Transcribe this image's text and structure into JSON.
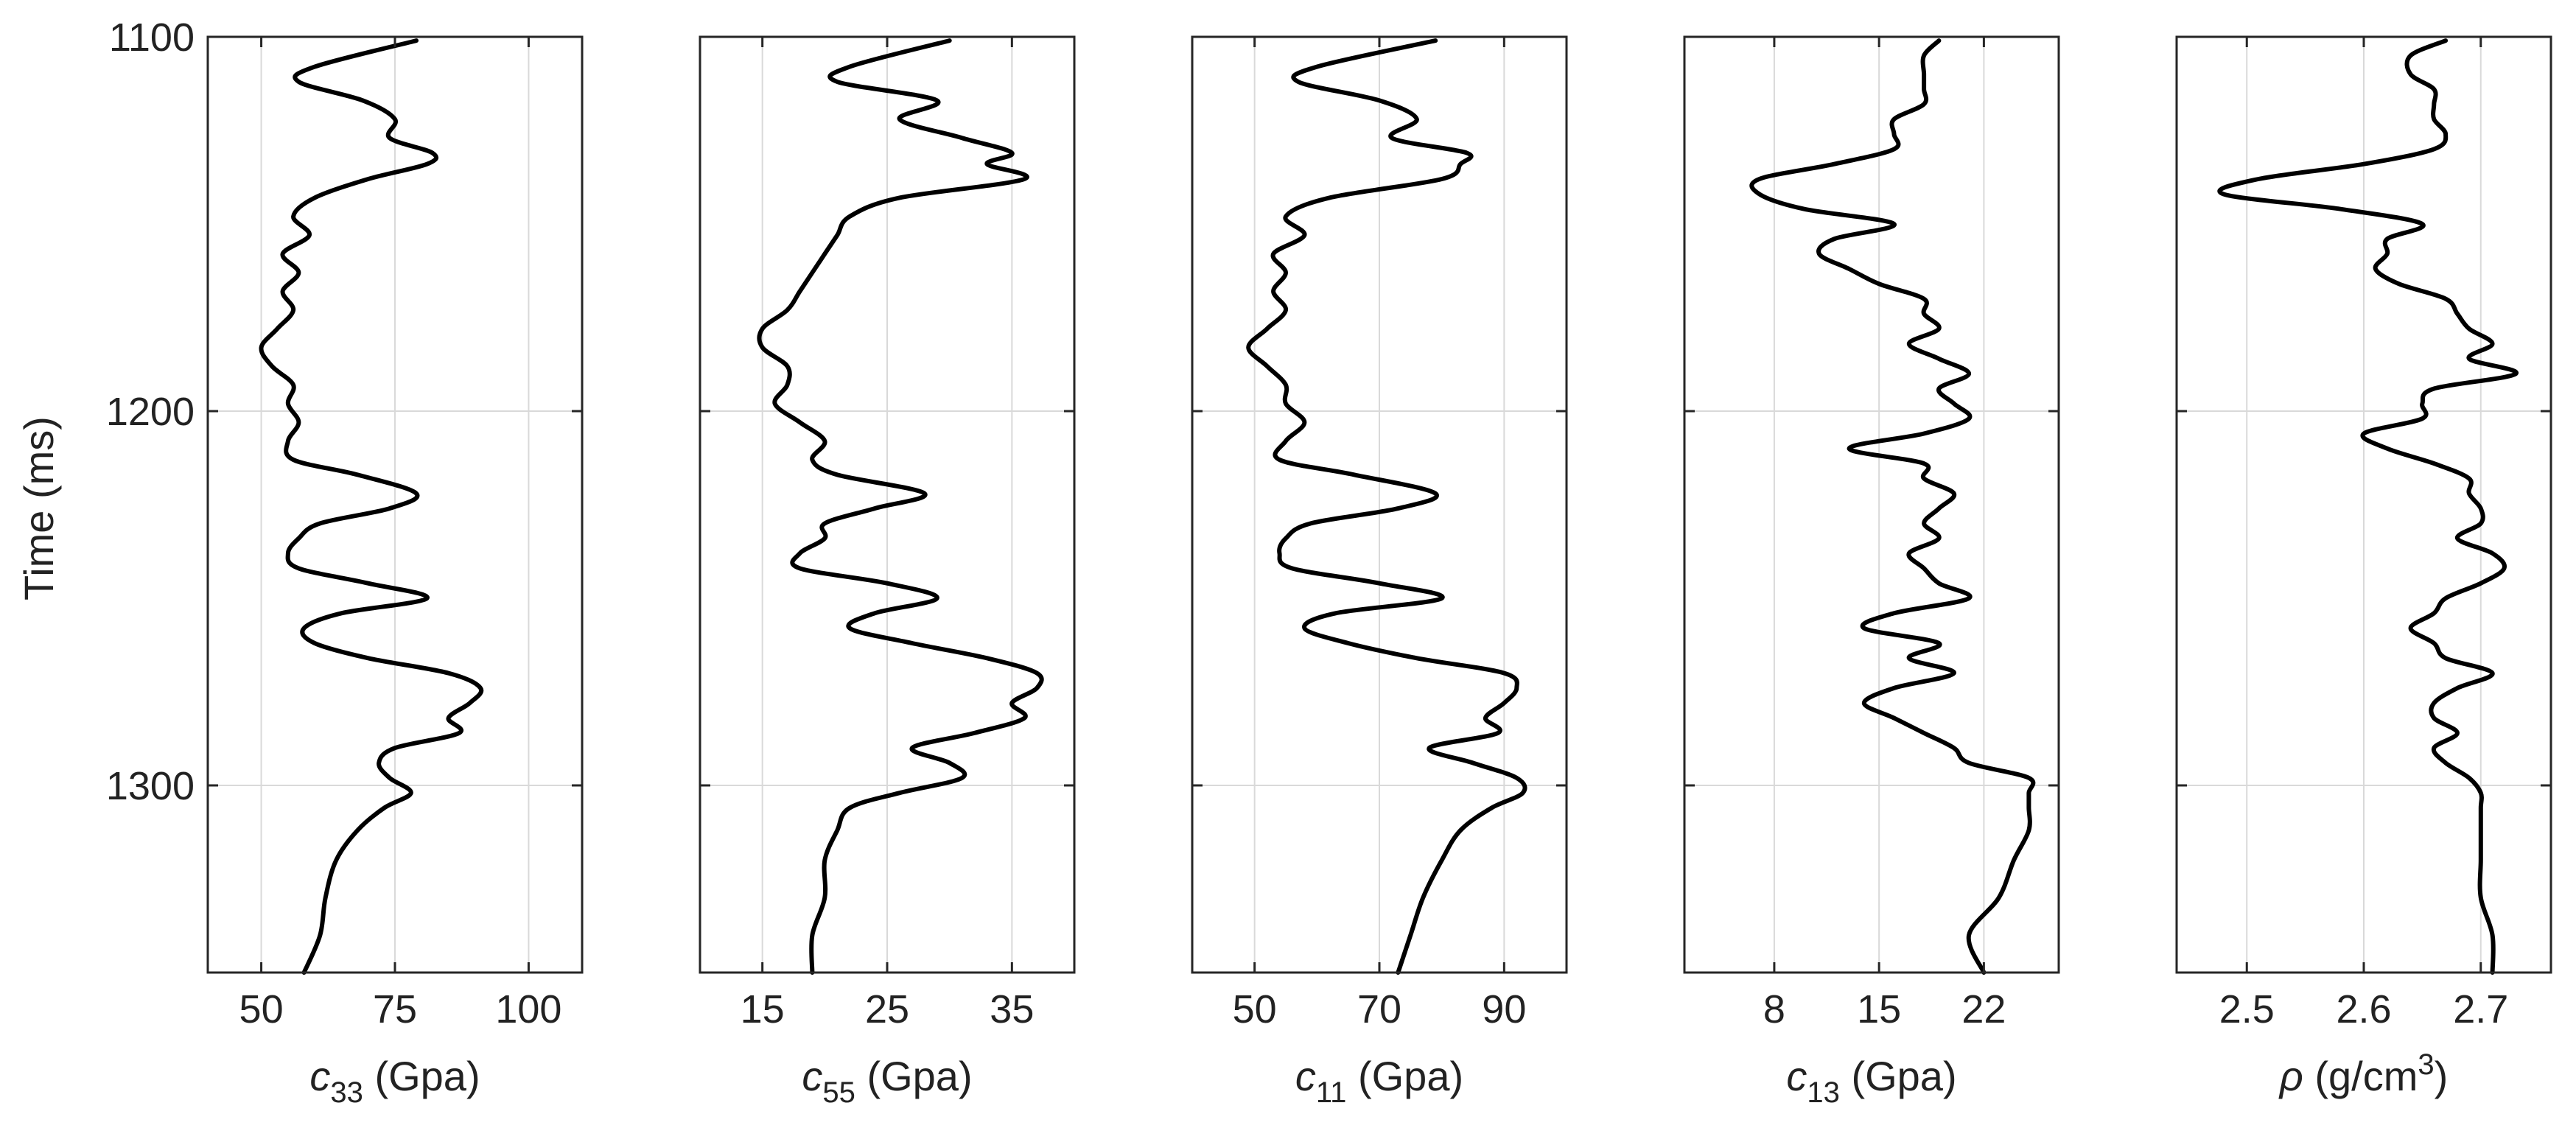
{
  "chart_data": {
    "type": "line",
    "shared_y": {
      "label": "Time (ms)",
      "ticks": [
        1100,
        1200,
        1300
      ],
      "range": [
        1100,
        1350
      ],
      "reversed": true
    },
    "grid": true,
    "panels": [
      {
        "xlabel": {
          "symbol": "c",
          "sub": "33",
          "unit": " (Gpa)",
          "sup": ""
        },
        "xlim": [
          40,
          110
        ],
        "xticks": [
          50,
          75,
          100
        ],
        "xtick_labels": [
          "50",
          "75",
          "100"
        ],
        "series": [
          {
            "y": [
              1101,
              1108,
              1112,
              1117,
              1122,
              1127,
              1131,
              1134,
              1138,
              1143,
              1148,
              1153,
              1158,
              1163,
              1168,
              1173,
              1178,
              1183,
              1188,
              1193,
              1198,
              1203,
              1208,
              1213,
              1217,
              1222,
              1226,
              1230,
              1234,
              1238,
              1242,
              1246,
              1250,
              1254,
              1258,
              1262,
              1266,
              1270,
              1274,
              1278,
              1282,
              1286,
              1290,
              1294,
              1298,
              1302,
              1306,
              1312,
              1320,
              1330,
              1340,
              1350
            ],
            "x": [
              79,
              60,
              57,
              69,
              75,
              74,
              82,
              81,
              70,
              60,
              56,
              59,
              54,
              57,
              54,
              56,
              53,
              50,
              52,
              56,
              55,
              57,
              55,
              56,
              68,
              79,
              74,
              61,
              57,
              55,
              57,
              70,
              81,
              65,
              58,
              60,
              70,
              85,
              91,
              89,
              85,
              87,
              75,
              72,
              74,
              78,
              73,
              68,
              64,
              62,
              61,
              58
            ]
          }
        ]
      },
      {
        "xlabel": {
          "symbol": "c",
          "sub": "55",
          "unit": " (Gpa)",
          "sup": ""
        },
        "xlim": [
          10,
          40
        ],
        "xticks": [
          15,
          25,
          35
        ],
        "xtick_labels": [
          "15",
          "25",
          "35"
        ],
        "series": [
          {
            "y": [
              1101,
              1108,
              1112,
              1117,
              1122,
              1127,
              1131,
              1134,
              1138,
              1143,
              1148,
              1153,
              1158,
              1163,
              1168,
              1173,
              1178,
              1183,
              1188,
              1193,
              1198,
              1203,
              1208,
              1213,
              1217,
              1222,
              1226,
              1230,
              1234,
              1238,
              1242,
              1246,
              1250,
              1254,
              1258,
              1262,
              1266,
              1270,
              1274,
              1278,
              1282,
              1286,
              1290,
              1294,
              1298,
              1302,
              1306,
              1312,
              1320,
              1330,
              1340,
              1350
            ],
            "x": [
              30,
              22,
              21,
              29,
              26,
              31,
              35,
              33,
              36,
              26,
              22,
              21,
              20,
              19,
              18,
              17,
              15,
              15,
              17,
              17,
              16,
              18,
              20,
              19,
              21,
              28,
              24,
              20,
              20,
              18,
              18,
              25,
              29,
              24,
              22,
              27,
              33,
              37,
              37,
              35,
              36,
              32,
              27,
              30,
              31,
              26,
              22,
              21,
              20,
              20,
              19,
              19
            ]
          }
        ]
      },
      {
        "xlabel": {
          "symbol": "c",
          "sub": "11",
          "unit": " (Gpa)",
          "sup": ""
        },
        "xlim": [
          40,
          100
        ],
        "xticks": [
          50,
          70,
          90
        ],
        "xtick_labels": [
          "50",
          "70",
          "90"
        ],
        "series": [
          {
            "y": [
              1101,
              1108,
              1112,
              1117,
              1122,
              1127,
              1131,
              1134,
              1138,
              1143,
              1148,
              1153,
              1158,
              1163,
              1168,
              1173,
              1178,
              1183,
              1188,
              1193,
              1198,
              1203,
              1208,
              1213,
              1217,
              1222,
              1226,
              1230,
              1234,
              1238,
              1242,
              1246,
              1250,
              1254,
              1258,
              1262,
              1266,
              1270,
              1274,
              1278,
              1282,
              1286,
              1290,
              1294,
              1298,
              1302,
              1306,
              1312,
              1320,
              1330,
              1340,
              1350
            ],
            "x": [
              79,
              60,
              57,
              70,
              76,
              72,
              84,
              83,
              80,
              62,
              55,
              58,
              53,
              55,
              53,
              55,
              52,
              49,
              52,
              55,
              55,
              58,
              55,
              54,
              66,
              79,
              73,
              59,
              55,
              54,
              56,
              70,
              80,
              63,
              58,
              65,
              76,
              90,
              92,
              90,
              87,
              89,
              78,
              85,
              92,
              93,
              88,
              83,
              80,
              77,
              75,
              73
            ]
          }
        ]
      },
      {
        "xlabel": {
          "symbol": "c",
          "sub": "13",
          "unit": " (Gpa)",
          "sup": ""
        },
        "xlim": [
          2,
          27
        ],
        "xticks": [
          8,
          15,
          22
        ],
        "xtick_labels": [
          "8",
          "15",
          "22"
        ],
        "series": [
          {
            "y": [
              1101,
              1105,
              1110,
              1114,
              1118,
              1122,
              1126,
              1130,
              1134,
              1138,
              1142,
              1146,
              1150,
              1154,
              1158,
              1162,
              1166,
              1170,
              1174,
              1178,
              1182,
              1186,
              1190,
              1194,
              1198,
              1202,
              1206,
              1210,
              1214,
              1218,
              1222,
              1226,
              1230,
              1234,
              1238,
              1242,
              1246,
              1250,
              1254,
              1258,
              1262,
              1266,
              1270,
              1274,
              1278,
              1282,
              1286,
              1290,
              1294,
              1298,
              1302,
              1306,
              1312,
              1320,
              1330,
              1340,
              1350
            ],
            "x": [
              19,
              18,
              18,
              18,
              18,
              16,
              16,
              16,
              12,
              7,
              7,
              10,
              16,
              12,
              11,
              13,
              15,
              18,
              18,
              19,
              17,
              19,
              21,
              19,
              20,
              21,
              18,
              13,
              18,
              18,
              20,
              19,
              18,
              19,
              17,
              18,
              19,
              21,
              16,
              14,
              19,
              17,
              20,
              16,
              14,
              16,
              18,
              20,
              21,
              25,
              25,
              25,
              25,
              24,
              23,
              21,
              22
            ]
          }
        ]
      },
      {
        "xlabel": {
          "symbol": "ρ",
          "sub": "",
          "unit": " (g/cm",
          "sup": "3",
          "close": ")"
        },
        "xlim": [
          2.44,
          2.76
        ],
        "xticks": [
          2.5,
          2.6,
          2.7
        ],
        "xtick_labels": [
          "2.5",
          "2.6",
          "2.7"
        ],
        "series": [
          {
            "y": [
              1101,
              1105,
              1110,
              1114,
              1118,
              1122,
              1126,
              1130,
              1134,
              1138,
              1142,
              1146,
              1150,
              1154,
              1158,
              1162,
              1166,
              1170,
              1174,
              1178,
              1182,
              1186,
              1190,
              1194,
              1198,
              1202,
              1206,
              1210,
              1214,
              1218,
              1222,
              1226,
              1230,
              1234,
              1238,
              1242,
              1246,
              1250,
              1254,
              1258,
              1262,
              1266,
              1270,
              1274,
              1278,
              1282,
              1286,
              1290,
              1294,
              1298,
              1302,
              1306,
              1312,
              1320,
              1330,
              1340,
              1350
            ],
            "x": [
              2.67,
              2.64,
              2.64,
              2.66,
              2.66,
              2.66,
              2.67,
              2.66,
              2.6,
              2.51,
              2.48,
              2.58,
              2.65,
              2.62,
              2.62,
              2.61,
              2.63,
              2.67,
              2.68,
              2.69,
              2.71,
              2.69,
              2.73,
              2.66,
              2.65,
              2.65,
              2.6,
              2.62,
              2.66,
              2.69,
              2.69,
              2.7,
              2.7,
              2.68,
              2.71,
              2.72,
              2.7,
              2.67,
              2.66,
              2.64,
              2.66,
              2.67,
              2.71,
              2.68,
              2.66,
              2.66,
              2.68,
              2.66,
              2.67,
              2.69,
              2.7,
              2.7,
              2.7,
              2.7,
              2.7,
              2.71,
              2.71
            ]
          }
        ]
      }
    ]
  }
}
